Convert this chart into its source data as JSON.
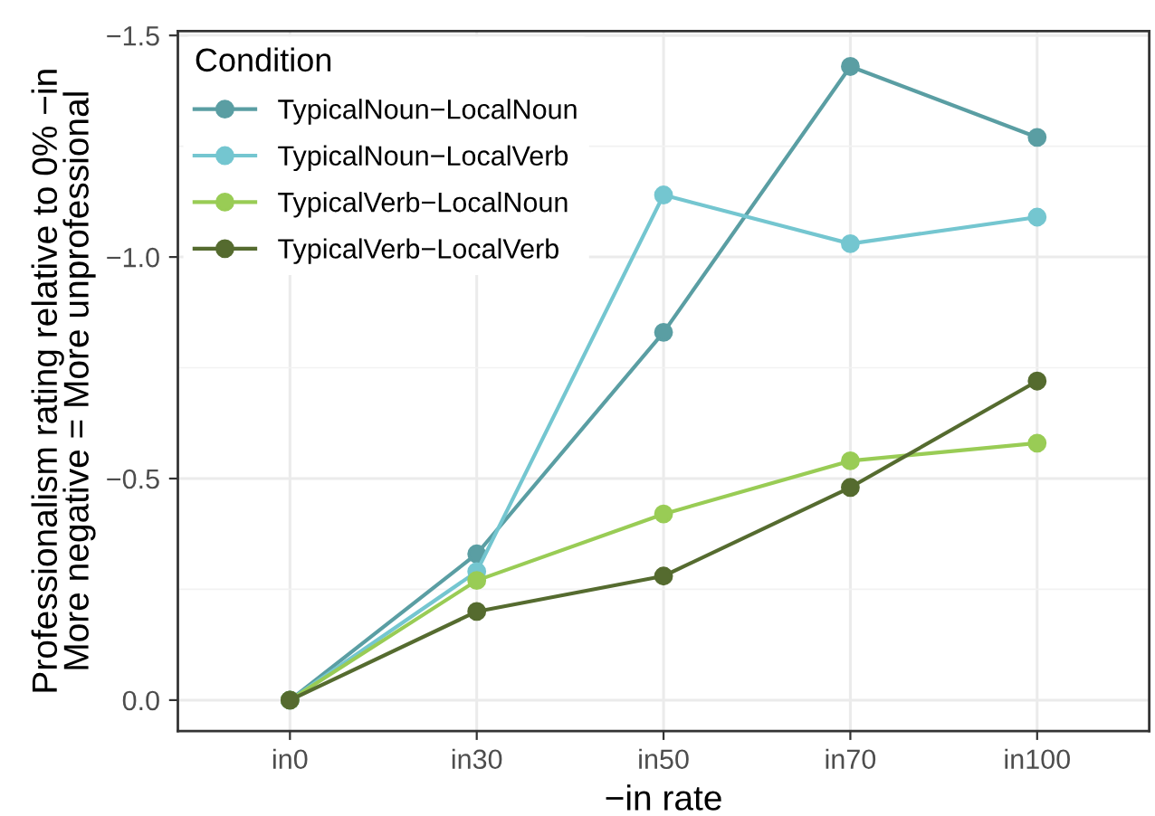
{
  "chart_data": {
    "type": "line",
    "xlabel": "−in rate",
    "ylabel": "Professionalism rating relative to 0% −in\nMore negative = More unprofessional",
    "legend_title": "Condition",
    "legend": "top left",
    "grid": true,
    "marker": "circle",
    "line_style": "solid",
    "categories": [
      "in0",
      "in30",
      "in50",
      "in70",
      "in100"
    ],
    "ylim": [
      0.07,
      -1.51
    ],
    "yticks": [
      {
        "value": 0,
        "label": "0.0"
      },
      {
        "value": -0.5,
        "label": "−0.5"
      },
      {
        "value": -1.0,
        "label": "−1.0"
      },
      {
        "value": -1.5,
        "label": "−1.5"
      }
    ],
    "series": [
      {
        "name": "TypicalNoun−LocalNoun",
        "color": "#5a9ea3",
        "values": [
          0,
          -0.33,
          -0.83,
          -1.43,
          -1.27
        ]
      },
      {
        "name": "TypicalNoun−LocalVerb",
        "color": "#74c6d0",
        "values": [
          0,
          -0.29,
          -1.14,
          -1.03,
          -1.09
        ]
      },
      {
        "name": "TypicalVerb−LocalNoun",
        "color": "#99cc55",
        "values": [
          0,
          -0.27,
          -0.42,
          -0.54,
          -0.58
        ]
      },
      {
        "name": "TypicalVerb−LocalVerb",
        "color": "#556b2f",
        "values": [
          0,
          -0.2,
          -0.28,
          -0.48,
          -0.72
        ]
      }
    ]
  }
}
